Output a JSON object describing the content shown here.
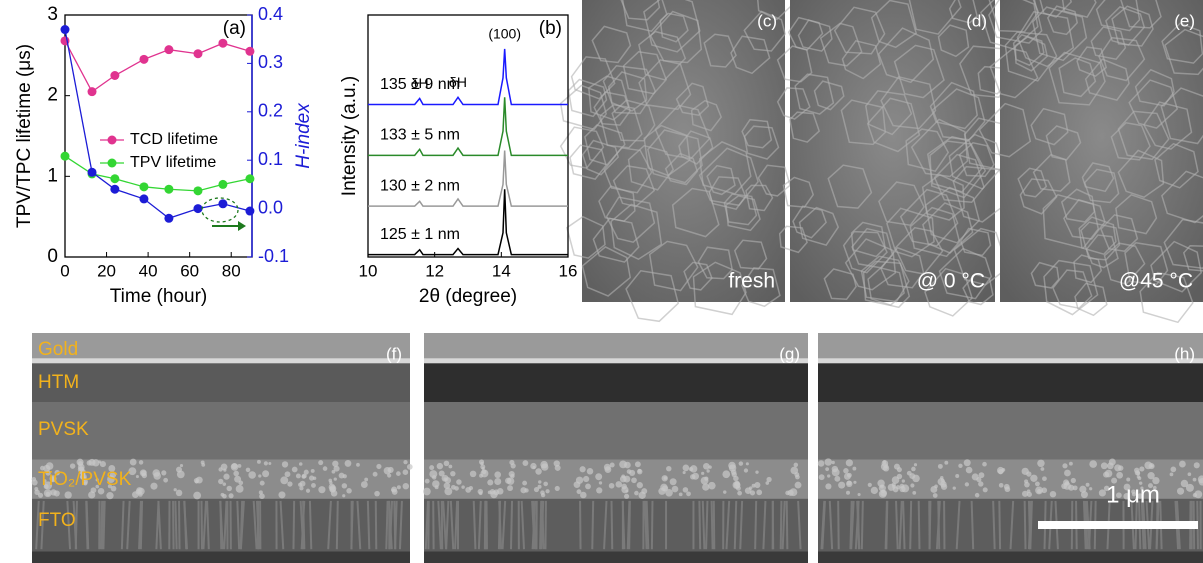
{
  "chart_data": [
    {
      "type": "line",
      "title": "(a)",
      "x_label": "Time (hour)",
      "y_label": "TPV/TPC lifetime (μs)",
      "y2_label": "H-index",
      "x": [
        0,
        13,
        24,
        38,
        50,
        64,
        76,
        89
      ],
      "series": [
        {
          "name": "TCD lifetime",
          "color": "#e0338f",
          "values": [
            2.68,
            2.05,
            2.25,
            2.45,
            2.57,
            2.52,
            2.65,
            2.55
          ]
        },
        {
          "name": "TPV lifetime",
          "color": "#33d633",
          "values": [
            1.25,
            1.03,
            0.97,
            0.87,
            0.84,
            0.82,
            0.9,
            0.97
          ]
        },
        {
          "color": "#1c1cd6",
          "axis": "y2",
          "values": [
            0.37,
            0.075,
            0.04,
            0.02,
            -0.02,
            0.0,
            0.01,
            -0.005
          ]
        }
      ],
      "xlim": [
        0,
        90
      ],
      "xticks": [
        0,
        20,
        40,
        60,
        80
      ],
      "ylim": [
        0,
        3
      ],
      "yticks": [
        0,
        1,
        2,
        3
      ],
      "y2lim": [
        -0.1,
        0.4
      ],
      "y2ticks": [
        -0.1,
        {
          "value": 0,
          "label": "0.0"
        },
        0.1,
        0.2,
        0.3,
        0.4
      ],
      "y2_color": "#1c1cd6"
    },
    {
      "type": "line",
      "title": "(b)",
      "x_label": "2θ (degree)",
      "y_label": "Intensity (a.u.)",
      "annotations": [
        "(100)",
        "δH",
        "δH"
      ],
      "x": [
        10,
        11.4,
        11.55,
        11.65,
        11.8,
        12.55,
        12.7,
        12.85,
        13.9,
        14.05,
        14.1,
        14.15,
        14.3,
        16
      ],
      "series": [
        {
          "name": "125 ± 1 nm",
          "color": "#000000",
          "values": [
            1,
            1,
            3,
            1,
            1,
            1,
            3.5,
            1,
            1,
            10,
            28,
            10,
            1,
            1
          ]
        },
        {
          "name": "130 ± 2 nm",
          "color": "#999999",
          "values": [
            21,
            21,
            23,
            21,
            21,
            21,
            24,
            21,
            21,
            30,
            44,
            30,
            21,
            21
          ]
        },
        {
          "name": "133 ± 5 nm",
          "color": "#2a8a2a",
          "values": [
            42,
            42,
            44.5,
            42,
            42,
            42,
            45,
            42,
            42,
            52,
            66,
            52,
            42,
            42
          ]
        },
        {
          "name": "135 ± 9 nm",
          "color": "#1a1aff",
          "values": [
            63,
            63,
            65.5,
            63,
            63,
            63,
            66,
            63,
            63,
            74,
            86,
            74,
            63,
            63
          ]
        }
      ],
      "xlim": [
        10,
        16
      ],
      "xticks": [
        10,
        12,
        14,
        16
      ],
      "ylim": [
        0,
        100
      ]
    }
  ],
  "panels": [
    {
      "label": "(c)",
      "caption": "fresh"
    },
    {
      "label": "(d)",
      "caption": "@ 0 °C"
    },
    {
      "label": "(e)",
      "caption": "@45 °C"
    },
    {
      "label": "(f)",
      "layers": [
        "Gold",
        "HTM",
        "PVSK",
        "TiO₂/PVSK",
        "FTO"
      ]
    },
    {
      "label": "(g)"
    },
    {
      "label": "(h)",
      "scale_bar": "1 μm"
    }
  ]
}
